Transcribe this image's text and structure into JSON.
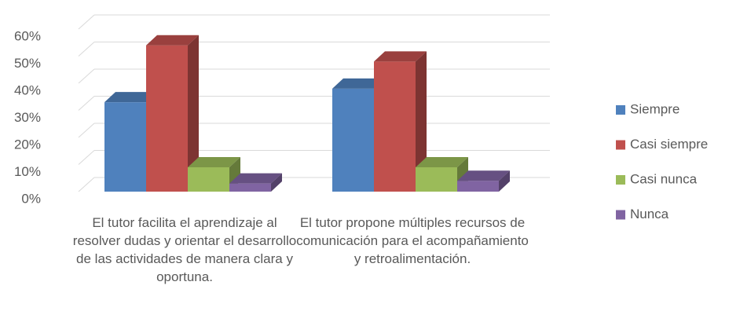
{
  "chart_data": {
    "type": "bar3d",
    "categories": [
      "El tutor facilita el aprendizaje al resolver dudas y orientar el desarrollo de las actividades de manera clara y oportuna.",
      "El tutor propone múltiples recursos de comunicación para el acompañamiento y retroalimentación."
    ],
    "series": [
      {
        "name": "Siempre",
        "color": "#4f81bd",
        "values": [
          33,
          38
        ]
      },
      {
        "name": "Casi siempre",
        "color": "#c0504d",
        "values": [
          54,
          48
        ]
      },
      {
        "name": "Casi nunca",
        "color": "#9bbb59",
        "values": [
          9,
          9
        ]
      },
      {
        "name": "Nunca",
        "color": "#8064a2",
        "values": [
          3,
          4
        ]
      }
    ],
    "ylim": [
      0,
      60
    ],
    "yticks": [
      {
        "value": 0,
        "label": "0%"
      },
      {
        "value": 10,
        "label": "10%"
      },
      {
        "value": 20,
        "label": "20%"
      },
      {
        "value": 30,
        "label": "30%"
      },
      {
        "value": 40,
        "label": "40%"
      },
      {
        "value": 50,
        "label": "50%"
      },
      {
        "value": 60,
        "label": "60%"
      }
    ],
    "grid": true,
    "legend": "right"
  }
}
